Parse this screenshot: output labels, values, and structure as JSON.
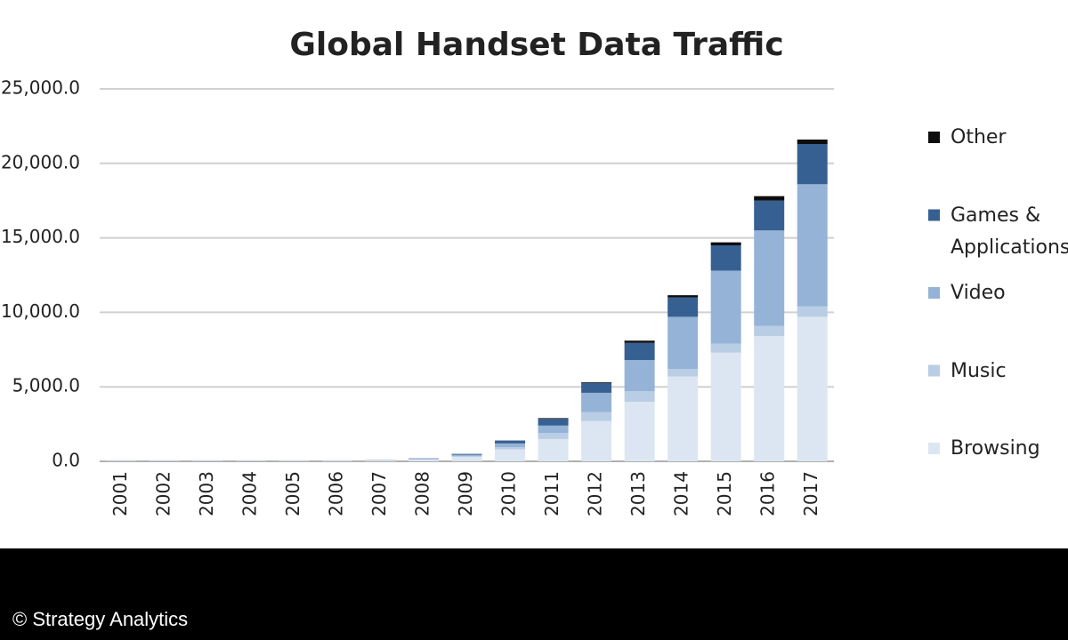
{
  "chart_data": {
    "type": "stacked_bar",
    "title": "Global Handset Data Traffic",
    "categories": [
      "2001",
      "2002",
      "2003",
      "2004",
      "2005",
      "2006",
      "2007",
      "2008",
      "2009",
      "2010",
      "2011",
      "2012",
      "2013",
      "2014",
      "2015",
      "2016",
      "2017"
    ],
    "series": [
      {
        "name": "Browsing",
        "color": "#dce6f2",
        "values": [
          30,
          35,
          40,
          40,
          45,
          50,
          70,
          120,
          300,
          800,
          1500,
          2700,
          4000,
          5700,
          7300,
          8400,
          9700
        ]
      },
      {
        "name": "Music",
        "color": "#b9cde5",
        "values": [
          5,
          5,
          5,
          5,
          5,
          5,
          10,
          30,
          60,
          150,
          400,
          600,
          700,
          500,
          600,
          700,
          700
        ]
      },
      {
        "name": "Video",
        "color": "#95b3d7",
        "values": [
          5,
          5,
          5,
          5,
          5,
          5,
          10,
          30,
          80,
          250,
          500,
          1300,
          2100,
          3500,
          4900,
          6400,
          8200
        ]
      },
      {
        "name": "Games & Applications",
        "color": "#366092",
        "values": [
          5,
          5,
          5,
          5,
          5,
          5,
          10,
          20,
          60,
          200,
          450,
          650,
          1150,
          1300,
          1700,
          2000,
          2700
        ]
      },
      {
        "name": "Other",
        "color": "#0d0d0d",
        "values": [
          0,
          0,
          0,
          0,
          0,
          0,
          0,
          0,
          0,
          0,
          50,
          50,
          150,
          150,
          200,
          300,
          300
        ]
      }
    ],
    "ylim": [
      0,
      25000
    ],
    "yticks": [
      {
        "value": 0,
        "label": "0.0"
      },
      {
        "value": 5000,
        "label": "5,000.0"
      },
      {
        "value": 10000,
        "label": "10,000.0"
      },
      {
        "value": 15000,
        "label": "15,000.0"
      },
      {
        "value": 20000,
        "label": "20,000.0"
      },
      {
        "value": 25000,
        "label": "25,000.0"
      }
    ],
    "grid": true,
    "legend": "right"
  },
  "credit": "© Strategy Analytics"
}
